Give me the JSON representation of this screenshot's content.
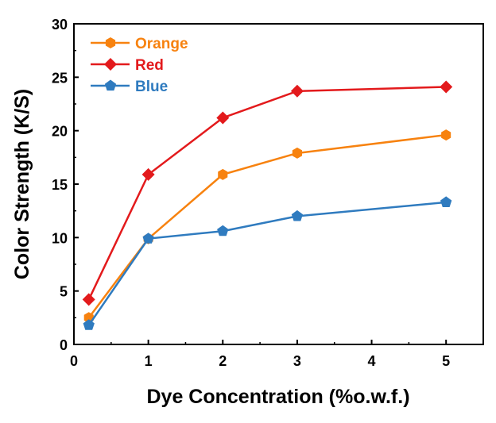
{
  "chart_data": {
    "type": "line",
    "title": "",
    "xlabel": "Dye Concentration (%o.w.f.)",
    "ylabel": "Color Strength (K/S)",
    "xlim": [
      0,
      5.5
    ],
    "ylim": [
      0,
      30
    ],
    "xticks": [
      "0",
      "1",
      "2",
      "3",
      "4",
      "5"
    ],
    "yticks": [
      "0",
      "5",
      "10",
      "15",
      "20",
      "25",
      "30"
    ],
    "grid": false,
    "legend_position": "top-left",
    "x": [
      0.2,
      1,
      2,
      3,
      5
    ],
    "series": [
      {
        "name": "Orange",
        "color": "#F7820F",
        "marker": "hexagon",
        "values": [
          2.5,
          9.9,
          15.9,
          17.9,
          19.6
        ]
      },
      {
        "name": "Red",
        "color": "#E31A1C",
        "marker": "diamond",
        "values": [
          4.2,
          15.9,
          21.2,
          23.7,
          24.1
        ]
      },
      {
        "name": "Blue",
        "color": "#2F7BBF",
        "marker": "pentagon",
        "values": [
          1.8,
          9.9,
          10.6,
          12.0,
          13.3
        ]
      }
    ]
  }
}
